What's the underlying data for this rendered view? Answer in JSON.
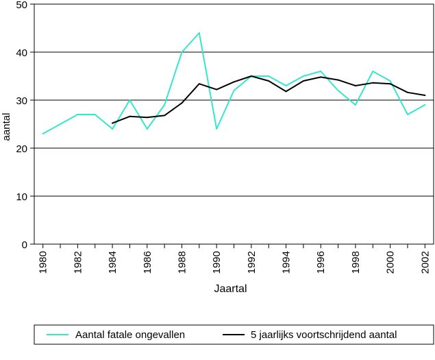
{
  "chart_data": {
    "type": "line",
    "title": "",
    "xlabel": "Jaartal",
    "ylabel": "aantal",
    "ylim": [
      0,
      50
    ],
    "yticks": [
      0,
      10,
      20,
      30,
      40,
      50
    ],
    "xlim": [
      1979.5,
      2002.5
    ],
    "xticks": [
      1980,
      1982,
      1984,
      1986,
      1988,
      1990,
      1992,
      1994,
      1996,
      1998,
      2000,
      2002
    ],
    "grid": "horizontal",
    "legend_position": "bottom",
    "series": [
      {
        "name": "Aantal fatale ongevallen",
        "color": "#33e6cc",
        "x": [
          1980,
          1981,
          1982,
          1983,
          1984,
          1985,
          1986,
          1987,
          1988,
          1989,
          1990,
          1991,
          1992,
          1993,
          1994,
          1995,
          1996,
          1997,
          1998,
          1999,
          2000,
          2001,
          2002
        ],
        "values": [
          23,
          25,
          27,
          27,
          24,
          30,
          24,
          29,
          40,
          44,
          24,
          32,
          35,
          35,
          33,
          35,
          36,
          32,
          29,
          36,
          34,
          27,
          29
        ]
      },
      {
        "name": "5 jaarlijks voortschrijdend aantal",
        "color": "#000000",
        "x": [
          1984,
          1985,
          1986,
          1987,
          1988,
          1989,
          1990,
          1991,
          1992,
          1993,
          1994,
          1995,
          1996,
          1997,
          1998,
          1999,
          2000,
          2001,
          2002
        ],
        "values": [
          25.2,
          26.6,
          26.4,
          26.8,
          29.4,
          33.4,
          32.2,
          33.8,
          35.0,
          34.0,
          31.8,
          34.0,
          34.8,
          34.2,
          33.0,
          33.6,
          33.4,
          31.6,
          31.0
        ]
      }
    ]
  }
}
